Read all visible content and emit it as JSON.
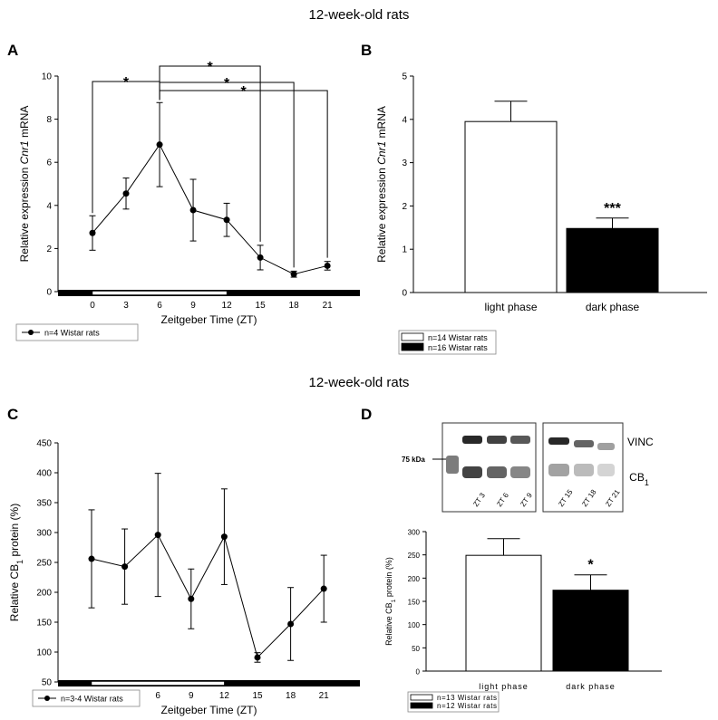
{
  "headings": {
    "top": "12-week-old rats",
    "bottom": "12-week-old rats"
  },
  "panels": {
    "A": "A",
    "B": "B",
    "C": "C",
    "D": "D"
  },
  "colors": {
    "line": "#000000",
    "bar_light": "#ffffff",
    "bar_dark": "#000000",
    "blot_bg": "#ffffff"
  },
  "chart_data": [
    {
      "panel": "A",
      "type": "line",
      "x": [
        0,
        3,
        6,
        9,
        12,
        15,
        18,
        21
      ],
      "y": [
        2.72,
        4.55,
        6.82,
        3.78,
        3.33,
        1.58,
        0.81,
        1.2
      ],
      "err": [
        0.8,
        0.72,
        1.95,
        1.43,
        0.77,
        0.57,
        0.14,
        0.2
      ],
      "xlabel": "Zeitgeber Time (ZT)",
      "ylabel": {
        "pre": "Relative expression ",
        "italic": "Cnr1",
        "post": " mRNA"
      },
      "ylim": [
        0,
        10
      ],
      "yticks": [
        0,
        2,
        4,
        6,
        8,
        10
      ],
      "light_dark_bar": {
        "light": [
          0,
          12
        ]
      },
      "significance": [
        {
          "from": 0,
          "to": 6,
          "label": "*"
        },
        {
          "from": 6,
          "to": 15,
          "label": "*"
        },
        {
          "from": 6,
          "to": 18,
          "label": "*"
        },
        {
          "from": 6,
          "to": 21,
          "label": "*"
        }
      ],
      "legend": [
        "n=4 Wistar rats"
      ]
    },
    {
      "panel": "B",
      "type": "bar",
      "categories": [
        "light phase",
        "dark phase"
      ],
      "values": [
        3.95,
        1.48
      ],
      "err": [
        0.47,
        0.24
      ],
      "ylabel": {
        "pre": "Relative expression ",
        "italic": "Cnr1",
        "post": " mRNA"
      },
      "ylim": [
        0,
        5
      ],
      "yticks": [
        0,
        1,
        2,
        3,
        4,
        5
      ],
      "significance": "***",
      "legend": [
        "n=14 Wistar rats",
        "n=16 Wistar rats"
      ]
    },
    {
      "panel": "C",
      "type": "line",
      "x": [
        0,
        3,
        6,
        9,
        12,
        15,
        18,
        21
      ],
      "y": [
        256,
        243,
        296,
        189,
        293,
        91,
        147,
        206
      ],
      "err": [
        82,
        63,
        103,
        50,
        80,
        8,
        61,
        56
      ],
      "xlabel": "Zeitgeber Time (ZT)",
      "ylabel": {
        "pre": "Relative CB",
        "sub": "1",
        "post": " protein (%)"
      },
      "ylim": [
        50,
        450
      ],
      "yticks": [
        50,
        100,
        150,
        200,
        250,
        300,
        350,
        400,
        450
      ],
      "light_dark_bar": {
        "light": [
          0,
          12
        ]
      },
      "legend": [
        "n=3-4 Wistar rats"
      ]
    },
    {
      "panel": "D",
      "type": "bar",
      "categories": [
        "light phase",
        "dark phase"
      ],
      "values": [
        249,
        174
      ],
      "err": [
        36,
        33
      ],
      "ylabel": {
        "pre": "Relative CB",
        "sub": "1",
        "post": " protein (%)"
      },
      "ylim": [
        0,
        300
      ],
      "yticks": [
        0,
        50,
        100,
        150,
        200,
        250,
        300
      ],
      "significance": "*",
      "legend": [
        "n=13 Wistar rats",
        "n=12 Wistar rats"
      ]
    }
  ],
  "blot": {
    "marker": "75 kDa",
    "labels": {
      "top": "VINC",
      "bottom_pre": "CB",
      "bottom_sub": "1"
    },
    "lanes_left": [
      "ZT 3",
      "ZT 6",
      "ZT 9"
    ],
    "lanes_right": [
      "ZT 15",
      "ZT 18",
      "ZT 21"
    ]
  }
}
